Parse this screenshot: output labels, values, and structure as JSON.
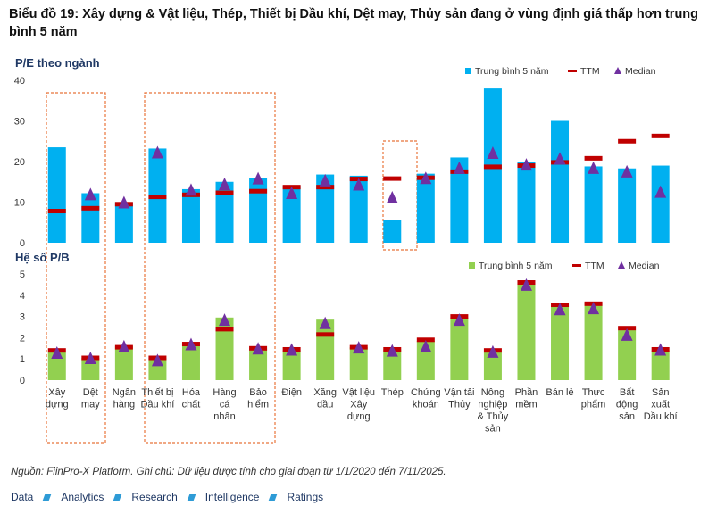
{
  "title": "Biểu đồ 19: Xây dựng & Vật liệu, Thép, Thiết bị Dầu khí, Dệt may, Thủy sản đang ở vùng định giá thấp hơn trung bình 5 năm",
  "source": "Nguồn: FiinPro-X Platform. Ghi chú: Dữ liệu được tính cho giai đoạn từ 1/1/2020 đến 7/11/2025.",
  "footer": {
    "items": [
      "Data",
      "Analytics",
      "Research",
      "Intelligence",
      "Ratings"
    ]
  },
  "colors": {
    "pe_bar": "#00b0f0",
    "pb_bar": "#92d050",
    "ttm": "#c00000",
    "median": "#7030a0",
    "highlight_box": "#e8743b"
  },
  "chart_data": [
    {
      "type": "bar",
      "title": "P/E theo ngành",
      "ylim": [
        0,
        40
      ],
      "yticks": [
        0,
        10,
        20,
        30,
        40
      ],
      "legend": {
        "position": "top-right",
        "labels": [
          "Trung bình 5 năm",
          "TTM",
          "Median"
        ]
      },
      "categories": [
        "Xây dựng",
        "Dệt may",
        "Ngân hàng",
        "Thiết bị Dầu khí",
        "Hóa chất",
        "Hàng cá nhân",
        "Bảo hiểm",
        "Điện",
        "Xăng dầu",
        "Vật liệu Xây dựng",
        "Thép",
        "Chứng khoán",
        "Vận tải Thủy",
        "Nông nghiệp & Thủy sản",
        "Phần mềm",
        "Bán lẻ",
        "Thực phẩm",
        "Bất động sản",
        "Sản xuất Dầu khí"
      ],
      "series": [
        {
          "name": "Trung bình 5 năm",
          "kind": "bar",
          "values": [
            23.5,
            12.2,
            10,
            23.2,
            13.2,
            15,
            16,
            14,
            16.8,
            16.5,
            5.5,
            17,
            21,
            38,
            20,
            30,
            18.8,
            18.3,
            19
          ]
        },
        {
          "name": "TTM",
          "kind": "dash",
          "values": [
            7.8,
            8.5,
            9.5,
            11.3,
            11.8,
            12.3,
            12.7,
            13.7,
            13.7,
            15.7,
            15.8,
            16,
            17.5,
            18.7,
            19,
            19.8,
            20.8,
            25,
            26.3
          ]
        },
        {
          "name": "Median",
          "kind": "triangle",
          "values": [
            null,
            12,
            10,
            22.3,
            13.1,
            14.5,
            15.9,
            12.3,
            15.4,
            14.4,
            11.2,
            16,
            18.5,
            22.2,
            19.3,
            20.8,
            18.5,
            17.6,
            12.6
          ]
        }
      ]
    },
    {
      "type": "bar",
      "title": "Hệ số P/B",
      "ylim": [
        0,
        5
      ],
      "yticks": [
        0,
        1,
        2,
        3,
        4,
        5
      ],
      "legend": {
        "position": "top-right",
        "labels": [
          "Trung bình 5 năm",
          "TTM",
          "Median"
        ]
      },
      "categories": [
        "Xây dựng",
        "Dệt may",
        "Ngân hàng",
        "Thiết bị Dầu khí",
        "Hóa chất",
        "Hàng cá nhân",
        "Bảo hiểm",
        "Điện",
        "Xăng dầu",
        "Vật liệu Xây dựng",
        "Thép",
        "Chứng khoán",
        "Vận tải Thủy",
        "Nông nghiệp & Thủy sản",
        "Phần mềm",
        "Bán lẻ",
        "Thực phẩm",
        "Bất động sản",
        "Sản xuất Dầu khí"
      ],
      "series": [
        {
          "name": "Trung bình 5 năm",
          "kind": "bar",
          "values": [
            1.35,
            1.05,
            1.6,
            1.05,
            1.7,
            2.95,
            1.5,
            1.4,
            2.85,
            1.55,
            1.45,
            1.85,
            2.95,
            1.35,
            4.55,
            3.5,
            3.65,
            2.35,
            1.4
          ]
        },
        {
          "name": "TTM",
          "kind": "dash",
          "values": [
            1.4,
            1.05,
            1.55,
            1.05,
            1.7,
            2.4,
            1.5,
            1.45,
            2.15,
            1.55,
            1.45,
            1.9,
            3.0,
            1.4,
            4.6,
            3.55,
            3.6,
            2.45,
            1.45
          ]
        },
        {
          "name": "Median",
          "kind": "triangle",
          "values": [
            1.3,
            1.05,
            1.6,
            0.95,
            1.7,
            2.85,
            1.5,
            1.45,
            2.7,
            1.55,
            1.4,
            1.6,
            2.85,
            1.35,
            4.5,
            3.35,
            3.4,
            2.15,
            1.45
          ]
        }
      ]
    }
  ],
  "xlabels": [
    [
      "Xây",
      "dựng"
    ],
    [
      "Dệt",
      "may"
    ],
    [
      "Ngân",
      "hàng"
    ],
    [
      "Thiết bị",
      "Dầu khí"
    ],
    [
      "Hóa",
      "chất"
    ],
    [
      "Hàng",
      "cá",
      "nhân"
    ],
    [
      "Bảo",
      "hiểm"
    ],
    [
      "Điện"
    ],
    [
      "Xăng",
      "dầu"
    ],
    [
      "Vật liệu",
      "Xây",
      "dựng"
    ],
    [
      "Thép"
    ],
    [
      "Chứng",
      "khoán"
    ],
    [
      "Vận tải",
      "Thủy"
    ],
    [
      "Nông",
      "nghiệp",
      "& Thủy",
      "sản"
    ],
    [
      "Phần",
      "mềm"
    ],
    [
      "Bán lẻ"
    ],
    [
      "Thực",
      "phẩm"
    ],
    [
      "Bất",
      "động",
      "sản"
    ],
    [
      "Sản",
      "xuất",
      "Dầu khí"
    ]
  ]
}
